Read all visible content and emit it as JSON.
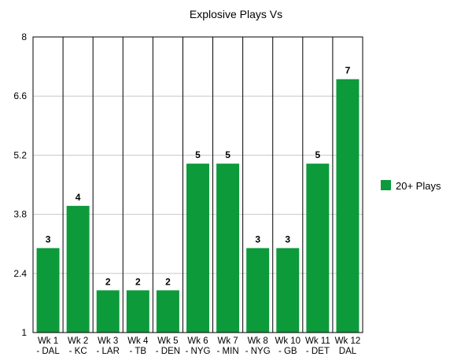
{
  "chart_data": {
    "type": "bar",
    "title": "Explosive Plays Vs",
    "xlabel": "",
    "ylabel": "",
    "ylim": [
      1,
      8
    ],
    "yticks": [
      "1",
      "2.4",
      "3.8",
      "5.2",
      "6.6",
      "8"
    ],
    "grid": true,
    "legend_position": "right",
    "categories": [
      [
        "Wk 1",
        "- DAL"
      ],
      [
        "Wk 2",
        "- KC"
      ],
      [
        "Wk 3",
        "- LAR"
      ],
      [
        "Wk 4",
        "- TB"
      ],
      [
        "Wk 5",
        "- DEN"
      ],
      [
        "Wk 6",
        "- NYG"
      ],
      [
        "Wk 7",
        "- MIN"
      ],
      [
        "Wk 8",
        "- NYG"
      ],
      [
        "Wk 10",
        "- GB"
      ],
      [
        "Wk 11",
        "- DET"
      ],
      [
        "Wk 12",
        "DAL"
      ]
    ],
    "series": [
      {
        "name": "20+ Plays",
        "color": "#0c9a3a",
        "values": [
          3,
          4,
          2,
          2,
          2,
          5,
          5,
          3,
          3,
          5,
          7
        ],
        "labels": [
          "3",
          "4",
          "2",
          "2",
          "2",
          "5",
          "5",
          "3",
          "3",
          "5",
          "7"
        ]
      }
    ]
  }
}
